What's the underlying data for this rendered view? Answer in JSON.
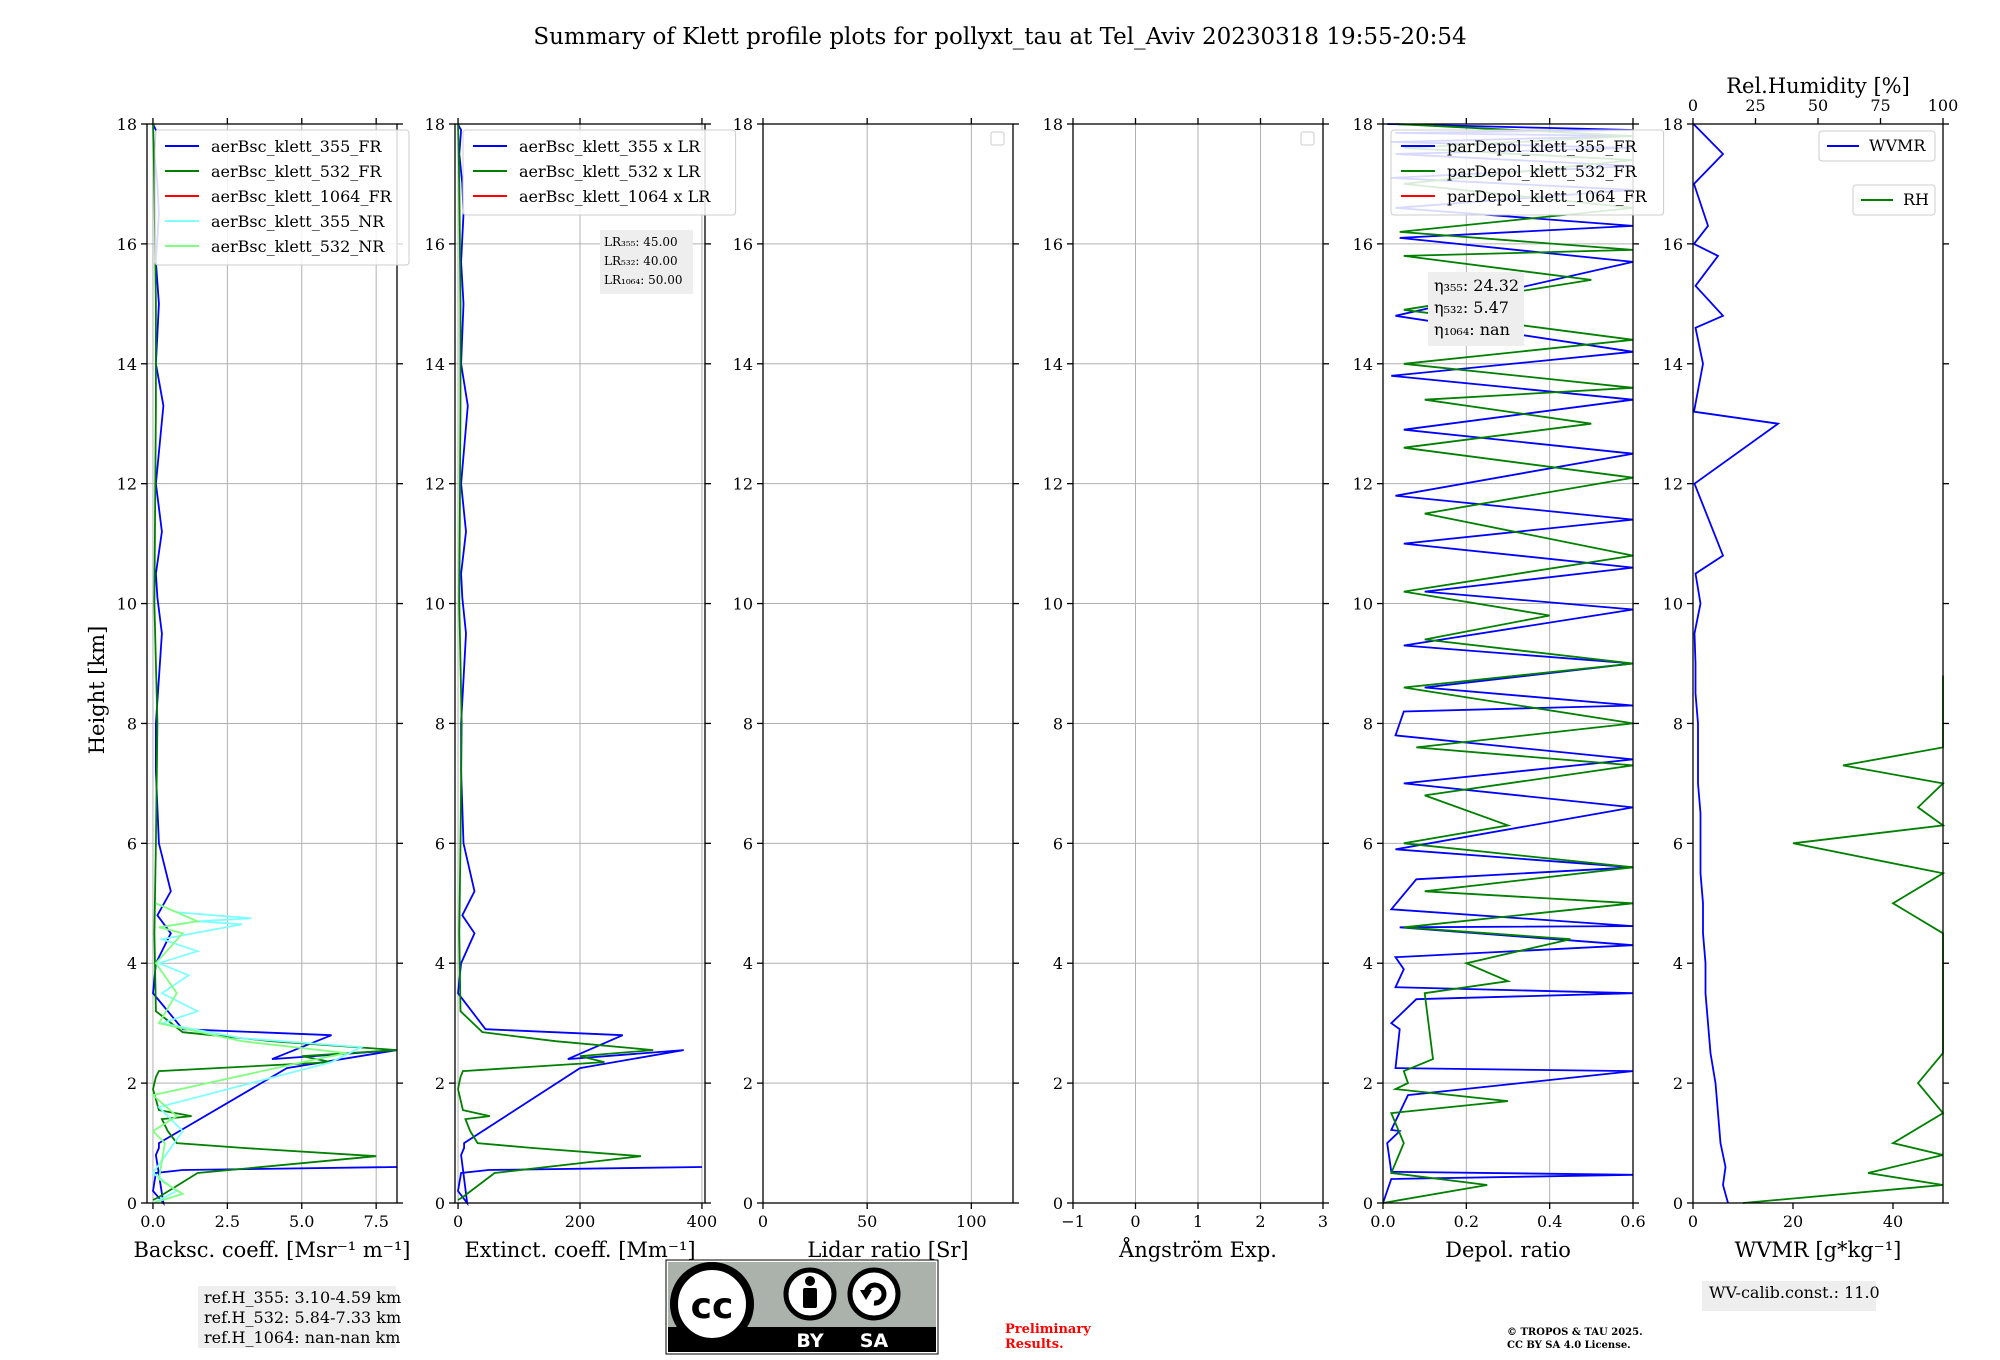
{
  "title": "Summary of Klett profile plots for pollyxt_tau at Tel_Aviv 20230318 19:55-20:54",
  "ylabel": "Height [km]",
  "colors": {
    "blue": "#0000ff",
    "green": "#008000",
    "red": "#ff0000",
    "cyan": "#7fffff",
    "lightgreen": "#80ff80",
    "grid": "#b0b0b0"
  },
  "chart_data": [
    {
      "type": "line",
      "xlabel": "Backsc. coeff. [Msr⁻¹ m⁻¹]",
      "xlim": [
        -0.2,
        8.2
      ],
      "xticks": [
        0,
        2.5,
        5,
        7.5
      ],
      "xticklabels": [
        "0.0",
        "2.5",
        "5.0",
        "7.5"
      ],
      "ylim": [
        0,
        18
      ],
      "yticks": [
        0,
        2,
        4,
        6,
        8,
        10,
        12,
        14,
        16,
        18
      ],
      "grid": true,
      "legend_location": "upper-left",
      "series": [
        {
          "name": "aerBsc_klett_355_FR",
          "color": "#0000ff",
          "x": [
            8.2,
            1.0,
            0.1,
            0.0,
            0.35,
            0.1,
            0.2,
            0.2,
            4.5,
            8.2,
            4.0,
            6.0,
            1.0,
            0.0,
            0.1,
            0.6,
            0.15,
            0.6,
            0.2,
            0.1,
            0.1,
            0.3,
            0.15,
            0.1,
            0.3,
            0.1,
            0.35,
            0.1,
            0.2,
            0.1,
            0.2,
            0.15,
            0.05,
            0.1,
            0.05,
            0.0
          ],
          "y": [
            0.6,
            0.55,
            0.5,
            0.2,
            0.0,
            0.8,
            0.92,
            1.0,
            2.25,
            2.55,
            2.4,
            2.8,
            2.9,
            3.5,
            4.0,
            4.5,
            4.8,
            5.2,
            6.0,
            7.2,
            8.0,
            9.5,
            10.1,
            10.5,
            11.2,
            12.0,
            13.3,
            14.0,
            15.0,
            15.7,
            16.5,
            17.0,
            17.5,
            17.9,
            17.95,
            18.0
          ]
        },
        {
          "name": "aerBsc_klett_532_FR",
          "color": "#008000",
          "x": [
            0.0,
            0.2,
            1.5,
            7.5,
            3.0,
            0.8,
            0.5,
            0.3,
            1.3,
            0.2,
            0.0,
            0.1,
            0.2,
            6.0,
            5.0,
            8.2,
            4.0,
            1.0,
            0.1,
            0.05,
            0.1,
            0.15,
            0.05,
            0.1,
            0.1,
            0.05,
            0.0
          ],
          "y": [
            0.05,
            0.1,
            0.5,
            0.78,
            0.92,
            1.0,
            1.2,
            1.4,
            1.45,
            1.55,
            1.9,
            2.1,
            2.2,
            2.35,
            2.45,
            2.55,
            2.7,
            2.85,
            3.2,
            4.5,
            6.0,
            8.0,
            10.0,
            13.3,
            15.0,
            17.0,
            18.0
          ]
        },
        {
          "name": "aerBsc_klett_1064_FR",
          "color": "#ff0000",
          "x": [],
          "y": []
        },
        {
          "name": "aerBsc_klett_355_NR",
          "color": "#7fffff",
          "x": [
            0.0,
            0.8,
            0.0,
            1.0,
            0.2,
            6.0,
            7.0,
            3.0,
            0.3,
            1.5,
            0.3,
            1.2,
            0.2,
            1.5,
            0.3,
            3.0,
            1.5,
            3.3,
            0.8,
            0.1
          ],
          "y": [
            0.0,
            0.2,
            0.5,
            1.2,
            1.6,
            2.35,
            2.6,
            2.75,
            3.0,
            3.2,
            3.5,
            3.8,
            4.0,
            4.2,
            4.4,
            4.65,
            4.7,
            4.75,
            4.85,
            5.0
          ]
        },
        {
          "name": "aerBsc_klett_532_NR",
          "color": "#80ff80",
          "x": [
            0.0,
            1.0,
            0.2,
            0.4,
            0.0,
            0.8,
            0.0,
            5.5,
            6.5,
            3.0,
            0.2,
            0.8,
            0.1,
            1.0,
            0.2,
            1.5,
            0.1
          ],
          "y": [
            0.0,
            0.15,
            0.4,
            1.0,
            1.2,
            1.45,
            1.8,
            2.4,
            2.5,
            2.7,
            3.0,
            3.5,
            4.0,
            4.5,
            4.6,
            4.7,
            5.0
          ]
        }
      ],
      "annotation": [
        "ref.H_355: 3.10-4.59 km",
        "ref.H_532: 5.84-7.33 km",
        "ref.H_1064: nan-nan km"
      ]
    },
    {
      "type": "line",
      "xlabel": "Extinct. coeff. [Mm⁻¹]",
      "xlim": [
        -5,
        405
      ],
      "xticks": [
        0,
        200,
        400
      ],
      "xticklabels": [
        "0",
        "200",
        "400"
      ],
      "ylim": [
        0,
        18
      ],
      "yticks": [
        0,
        2,
        4,
        6,
        8,
        10,
        12,
        14,
        16,
        18
      ],
      "grid": true,
      "legend_location": "upper-left",
      "series": [
        {
          "name": "aerBsc_klett_355 x LR",
          "color": "#0000ff",
          "x": [
            400,
            50,
            5,
            0,
            15,
            5,
            10,
            10,
            200,
            370,
            180,
            270,
            45,
            0,
            5,
            27,
            7,
            27,
            9,
            5,
            5,
            13,
            7,
            5,
            13,
            5,
            16,
            5,
            9,
            5,
            9,
            7,
            2,
            5,
            2,
            0
          ],
          "y": [
            0.6,
            0.55,
            0.5,
            0.2,
            0.0,
            0.8,
            0.92,
            1.0,
            2.25,
            2.55,
            2.4,
            2.8,
            2.9,
            3.5,
            4.0,
            4.5,
            4.8,
            5.2,
            6.0,
            7.2,
            8.0,
            9.5,
            10.1,
            10.5,
            11.2,
            12.0,
            13.3,
            14.0,
            15.0,
            15.7,
            16.5,
            17.0,
            17.5,
            17.9,
            17.95,
            18.0
          ]
        },
        {
          "name": "aerBsc_klett_532 x LR",
          "color": "#008000",
          "x": [
            0,
            8,
            60,
            300,
            120,
            32,
            20,
            12,
            52,
            8,
            0,
            4,
            8,
            240,
            200,
            320,
            160,
            40,
            4,
            2,
            4,
            6,
            2,
            4,
            4,
            2,
            0
          ],
          "y": [
            0.05,
            0.1,
            0.5,
            0.78,
            0.92,
            1.0,
            1.2,
            1.4,
            1.45,
            1.55,
            1.9,
            2.1,
            2.2,
            2.35,
            2.45,
            2.55,
            2.7,
            2.85,
            3.2,
            4.5,
            6.0,
            8.0,
            10.0,
            13.3,
            15.0,
            17.0,
            18.0
          ]
        },
        {
          "name": "aerBsc_klett_1064 x LR",
          "color": "#ff0000",
          "x": [],
          "y": []
        }
      ],
      "annotation": [
        "LR₃₅₅: 45.00",
        "LR₅₃₂: 40.00",
        "LR₁₀₆₄: 50.00"
      ]
    },
    {
      "type": "line",
      "xlabel": "Lidar ratio [Sr]",
      "xlim": [
        0,
        120
      ],
      "xticks": [
        0,
        50,
        100
      ],
      "xticklabels": [
        "0",
        "50",
        "100"
      ],
      "ylim": [
        0,
        18
      ],
      "yticks": [
        0,
        2,
        4,
        6,
        8,
        10,
        12,
        14,
        16,
        18
      ],
      "grid": true,
      "legend_location": "upper-right",
      "series": []
    },
    {
      "type": "line",
      "xlabel": "Ångström Exp.",
      "xlim": [
        -1,
        3
      ],
      "xticks": [
        -1,
        0,
        1,
        2,
        3
      ],
      "xticklabels": [
        "−1",
        "0",
        "1",
        "2",
        "3"
      ],
      "ylim": [
        0,
        18
      ],
      "yticks": [
        0,
        2,
        4,
        6,
        8,
        10,
        12,
        14,
        16,
        18
      ],
      "grid": true,
      "legend_location": "upper-right",
      "series": []
    },
    {
      "type": "line",
      "xlabel": "Depol. ratio",
      "xlim": [
        0,
        0.6
      ],
      "xticks": [
        0,
        0.2,
        0.4,
        0.6
      ],
      "xticklabels": [
        "0.0",
        "0.2",
        "0.4",
        "0.6"
      ],
      "ylim": [
        0,
        18
      ],
      "yticks": [
        0,
        2,
        4,
        6,
        8,
        10,
        12,
        14,
        16,
        18
      ],
      "grid": true,
      "legend_location": "upper-left",
      "series": [
        {
          "name": "parDepol_klett_355_FR",
          "color": "#0000ff",
          "x": [
            0.0,
            0.02,
            0.6,
            0.02,
            0.01,
            0.04,
            0.02,
            0.06,
            0.6,
            0.03,
            0.04,
            0.02,
            0.08,
            0.6,
            0.03,
            0.05,
            0.03,
            0.6,
            0.04,
            0.6,
            0.02,
            0.08,
            0.6,
            0.03,
            0.6,
            0.05,
            0.6,
            0.03,
            0.05,
            0.6,
            0.1,
            0.6,
            0.05,
            0.6,
            0.1,
            0.6,
            0.05,
            0.6,
            0.03,
            0.6,
            0.05,
            0.6,
            0.02,
            0.6,
            0.03,
            0.6,
            0.04,
            0.6,
            0.03,
            0.6,
            0.02,
            0.6,
            0.03,
            0.6,
            0.02,
            0.6,
            0.03,
            0.6,
            0.01
          ],
          "y": [
            0.0,
            0.4,
            0.47,
            0.52,
            1.0,
            1.2,
            1.22,
            1.8,
            2.2,
            2.25,
            2.9,
            3.0,
            3.4,
            3.5,
            3.6,
            3.9,
            4.1,
            4.3,
            4.6,
            4.62,
            4.9,
            5.4,
            5.6,
            5.9,
            6.6,
            7.0,
            7.4,
            7.8,
            8.2,
            8.3,
            8.6,
            9.0,
            9.3,
            9.9,
            10.2,
            10.6,
            11.0,
            11.4,
            11.8,
            12.5,
            12.9,
            13.4,
            13.8,
            14.2,
            14.8,
            15.7,
            16.1,
            16.3,
            16.6,
            16.9,
            17.1,
            17.3,
            17.5,
            17.6,
            17.7,
            17.8,
            17.85,
            17.9,
            18.0
          ]
        },
        {
          "name": "parDepol_klett_532_FR",
          "color": "#008000",
          "x": [
            0.0,
            0.25,
            0.02,
            0.05,
            0.02,
            0.3,
            0.03,
            0.06,
            0.05,
            0.12,
            0.1,
            0.3,
            0.2,
            0.45,
            0.05,
            0.6,
            0.1,
            0.6,
            0.05,
            0.3,
            0.1,
            0.6,
            0.08,
            0.6,
            0.05,
            0.6,
            0.1,
            0.4,
            0.05,
            0.6,
            0.1,
            0.6,
            0.05,
            0.5,
            0.1,
            0.6,
            0.05,
            0.6,
            0.05,
            0.5,
            0.05,
            0.6,
            0.04,
            0.6,
            0.05,
            0.6,
            0.05,
            0.6,
            0.03
          ],
          "y": [
            0.0,
            0.3,
            0.5,
            1.0,
            1.5,
            1.7,
            1.9,
            2.0,
            2.2,
            2.4,
            3.5,
            3.7,
            4.0,
            4.4,
            4.6,
            5.0,
            5.2,
            5.6,
            6.0,
            6.3,
            6.8,
            7.3,
            7.6,
            8.0,
            8.6,
            9.0,
            9.4,
            9.8,
            10.2,
            10.8,
            11.5,
            12.1,
            12.6,
            13.0,
            13.4,
            13.6,
            14.0,
            14.4,
            14.9,
            15.4,
            15.8,
            15.9,
            16.2,
            16.6,
            17.0,
            17.4,
            17.6,
            17.8,
            18.0
          ]
        },
        {
          "name": "parDepol_klett_1064_FR",
          "color": "#ff0000",
          "x": [],
          "y": []
        }
      ],
      "annotation": [
        "η₃₅₅: 24.32",
        "η₅₃₂: 5.47",
        "η₁₀₆₄: nan"
      ]
    },
    {
      "type": "line",
      "xlabel": "WVMR [g*kg⁻¹]",
      "xlim": [
        0,
        50
      ],
      "xticks": [
        0,
        20,
        40
      ],
      "xticklabels": [
        "0",
        "20",
        "40"
      ],
      "ylim": [
        0,
        18
      ],
      "yticks": [
        0,
        2,
        4,
        6,
        8,
        10,
        12,
        14,
        16,
        18
      ],
      "grid": false,
      "legend_location": "upper-right",
      "top_axis": {
        "label": "Rel.Humidity [%]",
        "lim": [
          0,
          100
        ],
        "ticks": [
          0,
          25,
          50,
          75,
          100
        ],
        "ticklabels": [
          "0",
          "25",
          "50",
          "75",
          "100"
        ]
      },
      "series": [
        {
          "name": "WVMR",
          "color": "#0000ff",
          "x": [
            7,
            6,
            6.5,
            5.5,
            5,
            4.5,
            3.5,
            3,
            2.5,
            2.5,
            2,
            2,
            1.5,
            1.5,
            1.5,
            1,
            1,
            1,
            0.5,
            0.5,
            0.3,
            1.5,
            0.5,
            6,
            0.3,
            17,
            0.2,
            2,
            0.5,
            6,
            0.5,
            5,
            0.2,
            3,
            0.2,
            6,
            0.1
          ],
          "y": [
            0,
            0.3,
            0.6,
            1.0,
            1.5,
            2.0,
            2.5,
            3.0,
            3.5,
            4.0,
            4.5,
            5.0,
            5.5,
            6.0,
            6.5,
            7.0,
            7.5,
            8.0,
            8.5,
            9.0,
            9.5,
            10.0,
            10.5,
            10.8,
            12.0,
            13.0,
            13.2,
            14.0,
            14.6,
            14.8,
            15.3,
            15.8,
            16.0,
            16.3,
            17.0,
            17.5,
            18.0
          ]
        },
        {
          "name": "RH",
          "color": "#008000",
          "x": [
            10,
            70,
            35,
            75,
            40,
            80,
            45,
            75,
            65,
            85,
            55,
            90,
            40,
            95,
            20,
            100,
            45,
            100,
            30,
            100,
            55,
            100,
            70,
            100,
            95,
            100
          ],
          "y": [
            0,
            0.3,
            0.5,
            0.8,
            1.0,
            1.5,
            2.0,
            2.5,
            3.0,
            3.5,
            4.0,
            4.5,
            5.0,
            5.5,
            6.0,
            6.3,
            6.6,
            7.0,
            7.3,
            7.6,
            7.9,
            8.1,
            8.2,
            8.4,
            8.7,
            8.8
          ]
        }
      ],
      "annotation": [
        "WV-calib.const.: 11.0"
      ]
    }
  ],
  "footer": {
    "license_badge": {
      "cc": "cc",
      "by": "BY",
      "sa": "SA"
    },
    "preliminary": [
      "Preliminary",
      "Results."
    ],
    "copyright": [
      "© TROPOS & TAU 2025.",
      "CC BY SA 4.0 License."
    ]
  }
}
